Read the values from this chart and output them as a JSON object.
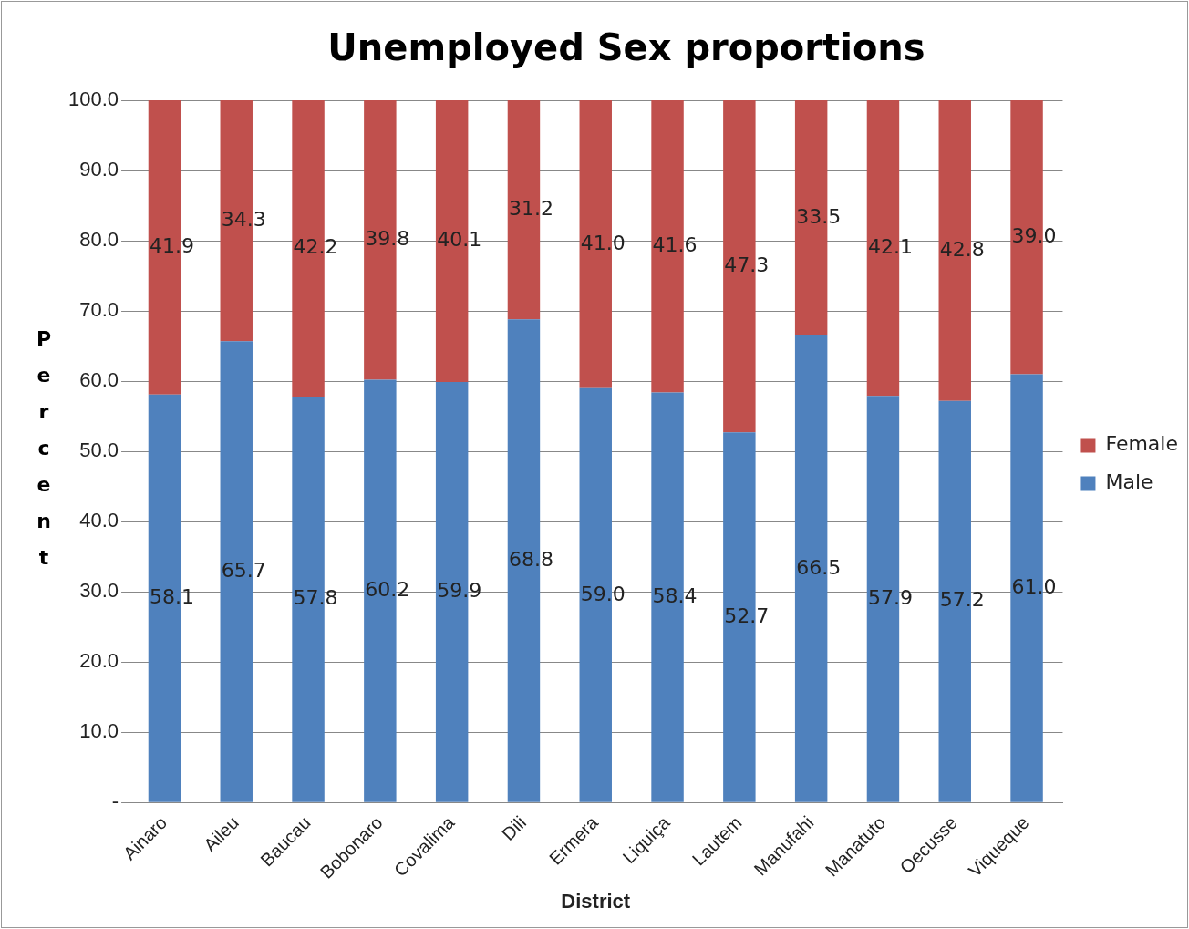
{
  "chart_data": {
    "type": "bar",
    "title": "Unemployed Sex proportions",
    "xlabel": "District",
    "ylabel": "Percent",
    "categories": [
      "Ainaro",
      "Aileu",
      "Baucau",
      "Bobonaro",
      "Covalima",
      "Dili",
      "Ermera",
      "Liquiça",
      "Lautem",
      "Manufahi",
      "Manatuto",
      "Oecusse",
      "Viqueque"
    ],
    "series": [
      {
        "name": "Male",
        "color": "#4f81bd",
        "values": [
          58.1,
          65.7,
          57.8,
          60.2,
          59.9,
          68.8,
          59.0,
          58.4,
          52.7,
          66.5,
          57.9,
          57.2,
          61.0
        ],
        "value_labels": [
          "58.1",
          "65.7",
          "57.8",
          "60.2",
          "59.9",
          "68.8",
          "59.0",
          "58.4",
          "52.7",
          "66.5",
          "57.9",
          "57.2",
          "61.0"
        ]
      },
      {
        "name": "Female",
        "color": "#c0504d",
        "values": [
          41.9,
          34.3,
          42.2,
          39.8,
          40.1,
          31.2,
          41.0,
          41.6,
          47.3,
          33.5,
          42.1,
          42.8,
          39.0
        ],
        "value_labels": [
          "41.9",
          "34.3",
          "42.2",
          "39.8",
          "40.1",
          "31.2",
          "41.0",
          "41.6",
          "47.3",
          "33.5",
          "42.1",
          "42.8",
          "39.0"
        ]
      }
    ],
    "stacked": true,
    "ylim": [
      0,
      100
    ],
    "yticks": [
      {
        "value": 0,
        "label": "-"
      },
      {
        "value": 10,
        "label": "10.0"
      },
      {
        "value": 20,
        "label": "20.0"
      },
      {
        "value": 30,
        "label": "30.0"
      },
      {
        "value": 40,
        "label": "40.0"
      },
      {
        "value": 50,
        "label": "50.0"
      },
      {
        "value": 60,
        "label": "60.0"
      },
      {
        "value": 70,
        "label": "70.0"
      },
      {
        "value": 80,
        "label": "80.0"
      },
      {
        "value": 90,
        "label": "90.0"
      },
      {
        "value": 100,
        "label": "100.0"
      }
    ],
    "grid": "y",
    "legend": "right"
  }
}
